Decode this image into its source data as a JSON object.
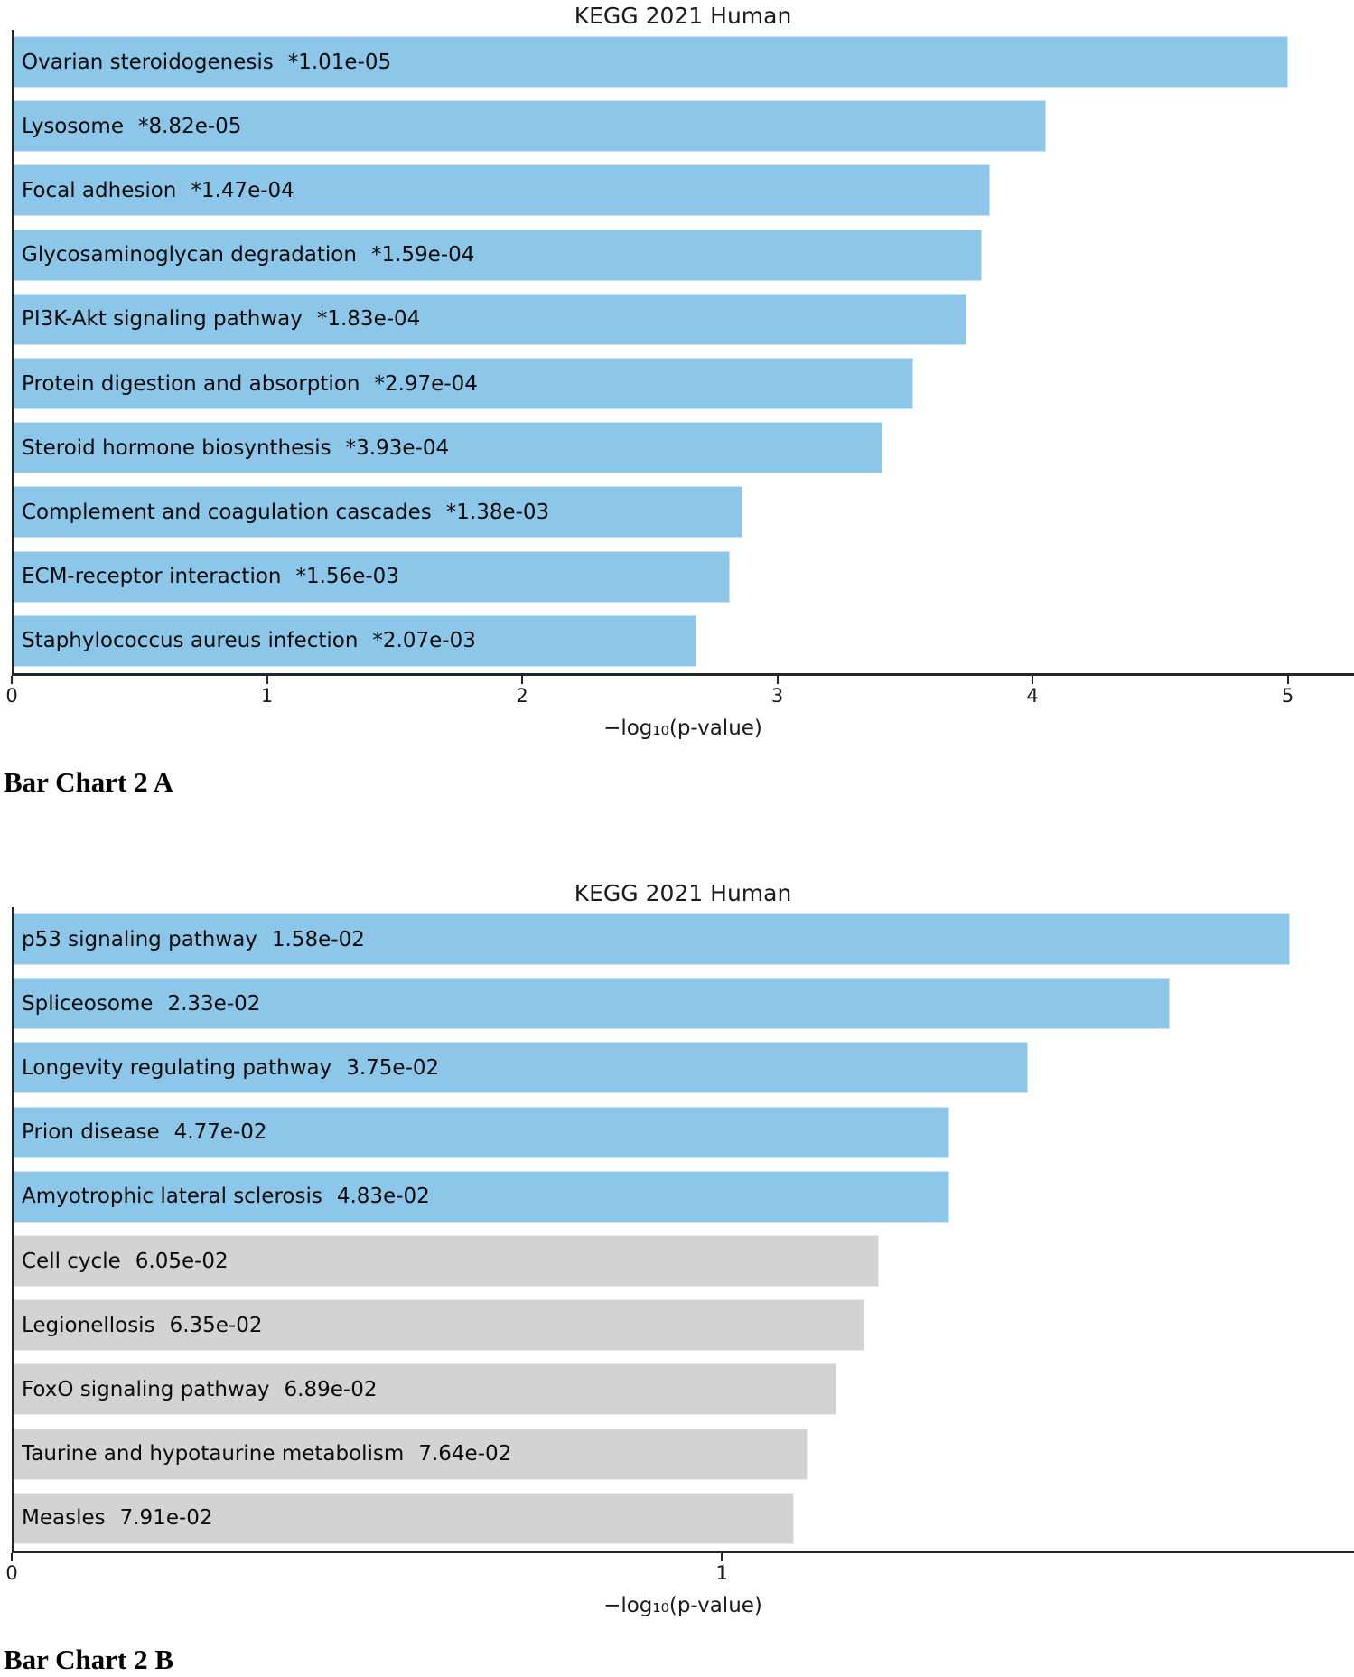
{
  "chart_data": [
    {
      "type": "bar",
      "orientation": "horizontal",
      "title": "KEGG 2021 Human",
      "xlabel": "−log₁₀(p-value)",
      "caption": "Bar Chart 2 A",
      "xlim": [
        0,
        5.26
      ],
      "xticks": [
        0,
        1,
        2,
        3,
        4,
        5
      ],
      "grid": false,
      "legend": "none",
      "significant_color": "#8CC6E8",
      "nonsignificant_color": "#D3D3D3",
      "categories": [
        "Ovarian steroidogenesis",
        "Lysosome",
        "Focal adhesion",
        "Glycosaminoglycan degradation",
        "PI3K-Akt signaling pathway",
        "Protein digestion and absorption",
        "Steroid hormone biosynthesis",
        "Complement and coagulation cascades",
        "ECM-receptor interaction",
        "Staphylococcus aureus infection"
      ],
      "pvalue_labels": [
        "*1.01e-05",
        "*8.82e-05",
        "*1.47e-04",
        "*1.59e-04",
        "*1.83e-04",
        "*2.97e-04",
        "*3.93e-04",
        "*1.38e-03",
        "*1.56e-03",
        "*2.07e-03"
      ],
      "values": [
        5.0,
        4.05,
        3.83,
        3.8,
        3.74,
        3.53,
        3.41,
        2.86,
        2.81,
        2.68
      ],
      "bar_colors": [
        "#8CC6E8",
        "#8CC6E8",
        "#8CC6E8",
        "#8CC6E8",
        "#8CC6E8",
        "#8CC6E8",
        "#8CC6E8",
        "#8CC6E8",
        "#8CC6E8",
        "#8CC6E8"
      ]
    },
    {
      "type": "bar",
      "orientation": "horizontal",
      "title": "KEGG 2021 Human",
      "xlabel": "−log₁₀(p-value)",
      "caption": "Bar Chart 2 B",
      "xlim": [
        0,
        1.89
      ],
      "xticks": [
        0,
        1
      ],
      "grid": false,
      "legend": "none",
      "significant_color": "#8CC6E8",
      "nonsignificant_color": "#D3D3D3",
      "categories": [
        "p53 signaling pathway",
        "Spliceosome",
        "Longevity regulating pathway",
        "Prion disease",
        "Amyotrophic lateral sclerosis",
        "Cell cycle",
        "Legionellosis",
        "FoxO signaling pathway",
        "Taurine and hypotaurine metabolism",
        "Measles"
      ],
      "pvalue_labels": [
        "1.58e-02",
        "2.33e-02",
        "3.75e-02",
        "4.77e-02",
        "4.83e-02",
        "6.05e-02",
        "6.35e-02",
        "6.89e-02",
        "7.64e-02",
        "7.91e-02"
      ],
      "values": [
        1.8,
        1.63,
        1.43,
        1.32,
        1.32,
        1.22,
        1.2,
        1.16,
        1.12,
        1.1
      ],
      "bar_colors": [
        "#8CC6E8",
        "#8CC6E8",
        "#8CC6E8",
        "#8CC6E8",
        "#8CC6E8",
        "#D3D3D3",
        "#D3D3D3",
        "#D3D3D3",
        "#D3D3D3",
        "#D3D3D3"
      ]
    }
  ]
}
